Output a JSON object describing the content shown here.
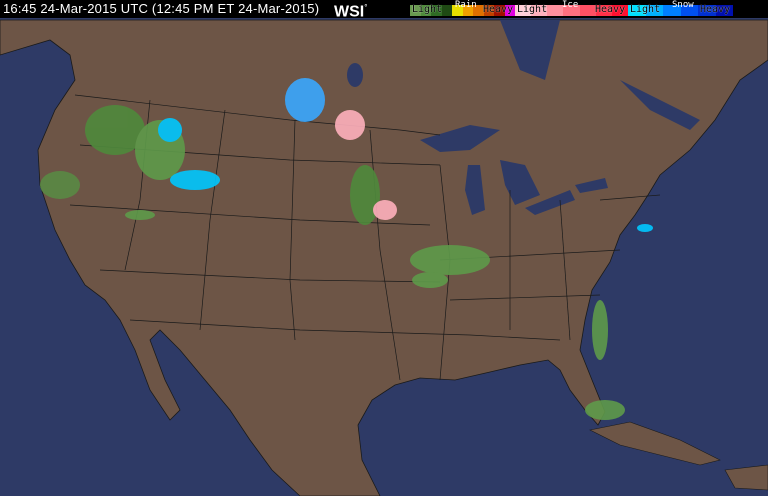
{
  "header": {
    "timestamp": "16:45 24-Mar-2015 UTC  (12:45 PM ET 24-Mar-2015)",
    "logo": "WSI",
    "logo_mark": "°"
  },
  "legend": {
    "rain": {
      "title": "Rain",
      "light": "Light",
      "heavy": "Heavy",
      "colors": [
        "#6a9a50",
        "#4f8a3c",
        "#2f6a24",
        "#1f4a14",
        "#e8e000",
        "#f0a000",
        "#e07000",
        "#c04000",
        "#a01000",
        "#e000e0"
      ]
    },
    "ice": {
      "title": "Ice",
      "light": "Light",
      "heavy": "Heavy",
      "colors": [
        "#ffd0d8",
        "#ffb0bc",
        "#ff909e",
        "#ff7080",
        "#ff5064",
        "#ff3048",
        "#ff1030"
      ]
    },
    "snow": {
      "title": "Snow",
      "light": "Light",
      "heavy": "Heavy",
      "colors": [
        "#00e0ff",
        "#00b0ff",
        "#0080ff",
        "#0050f0",
        "#0030d0",
        "#0010b0"
      ]
    }
  },
  "map": {
    "ocean_color": "#2e3a66",
    "land_color": "#6d5546",
    "border_color": "#1a1a1a"
  }
}
